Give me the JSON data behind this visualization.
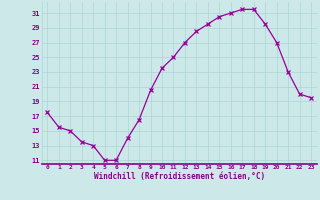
{
  "x": [
    0,
    1,
    2,
    3,
    4,
    5,
    6,
    7,
    8,
    9,
    10,
    11,
    12,
    13,
    14,
    15,
    16,
    17,
    18,
    19,
    20,
    21,
    22,
    23
  ],
  "y": [
    17.5,
    15.5,
    15.0,
    13.5,
    13.0,
    11.0,
    11.0,
    14.0,
    16.5,
    20.5,
    23.5,
    25.0,
    27.0,
    28.5,
    29.5,
    30.5,
    31.0,
    31.5,
    31.5,
    29.5,
    27.0,
    23.0,
    20.0,
    19.5
  ],
  "line_color": "#990099",
  "marker": "x",
  "bg_color": "#cce8e8",
  "grid_color": "#aad4d4",
  "xlabel": "Windchill (Refroidissement éolien,°C)",
  "xlabel_color": "#880088",
  "tick_color": "#880088",
  "yticks": [
    11,
    13,
    15,
    17,
    19,
    21,
    23,
    25,
    27,
    29,
    31
  ],
  "ylim": [
    10.5,
    32.5
  ],
  "xlim": [
    -0.5,
    23.5
  ],
  "spine_color": "#880088"
}
